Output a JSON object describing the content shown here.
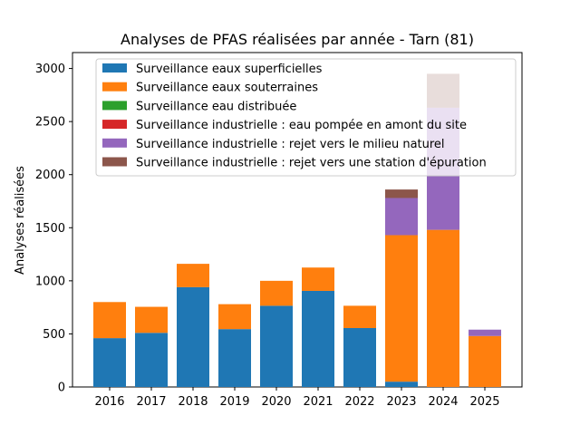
{
  "chart_data": {
    "type": "bar",
    "stacked": true,
    "title": "Analyses de PFAS réalisées par année - Tarn (81)",
    "xlabel": "",
    "ylabel": "Analyses réalisées",
    "categories": [
      "2016",
      "2017",
      "2018",
      "2019",
      "2020",
      "2021",
      "2022",
      "2023",
      "2024",
      "2025"
    ],
    "ylim": [
      0,
      3150
    ],
    "yticks": [
      0,
      500,
      1000,
      1500,
      2000,
      2500,
      3000
    ],
    "grid": false,
    "legend_position": "top-right",
    "series": [
      {
        "name": "Surveillance eaux superficielles",
        "color": "#1f77b4",
        "values": [
          460,
          510,
          940,
          545,
          765,
          905,
          555,
          50,
          0,
          0
        ]
      },
      {
        "name": "Surveillance eaux souterraines",
        "color": "#ff7f0e",
        "values": [
          340,
          245,
          220,
          235,
          235,
          220,
          210,
          1380,
          1480,
          480
        ]
      },
      {
        "name": "Surveillance eau distribuée",
        "color": "#2ca02c",
        "values": [
          0,
          0,
          0,
          0,
          0,
          0,
          0,
          0,
          0,
          0
        ]
      },
      {
        "name": "Surveillance industrielle : eau pompée en amont du site",
        "color": "#d62728",
        "values": [
          0,
          0,
          0,
          0,
          0,
          0,
          0,
          0,
          0,
          0
        ]
      },
      {
        "name": "Surveillance industrielle : rejet vers le milieu naturel",
        "color": "#9467bd",
        "values": [
          0,
          0,
          0,
          0,
          0,
          0,
          0,
          350,
          1150,
          60
        ]
      },
      {
        "name": "Surveillance industrielle : rejet vers une station d'épuration",
        "color": "#8c564b",
        "values": [
          0,
          0,
          0,
          0,
          0,
          0,
          0,
          80,
          320,
          0
        ]
      }
    ]
  }
}
